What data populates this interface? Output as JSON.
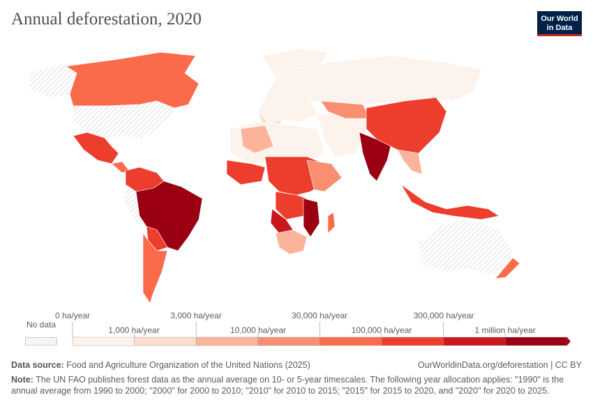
{
  "title": "Annual deforestation, 2020",
  "logo": {
    "line1": "Our World",
    "line2": "in Data"
  },
  "legend": {
    "no_data": "No data",
    "bins_upper": [
      "0 ha/year",
      "3,000 ha/year",
      "30,000 ha/year",
      "300,000 ha/year"
    ],
    "bins_lower": [
      "1,000 ha/year",
      "10,000 ha/year",
      "100,000 ha/year",
      "1 million ha/year"
    ],
    "colors": [
      "#fdf3ed",
      "#fcdccd",
      "#fbb49b",
      "#f98f70",
      "#f96b4b",
      "#ec3d2d",
      "#c9171d",
      "#9b0012"
    ],
    "no_data_color": "#e6e6e6"
  },
  "footer": {
    "source_label": "Data source:",
    "source_text": "Food and Agriculture Organization of the United Nations (2025)",
    "url": "OurWorldinData.org/deforestation | CC BY",
    "note_label": "Note:",
    "note_text": "The UN FAO publishes forest data as the annual average on 10- or 5-year timescales. The following year allocation applies: \"1990\" is the annual average from 1990 to 2000; \"2000\" for 2000 to 2010; \"2010\" for 2010 to 2015; \"2015\" for 2015 to 2020, and \"2020\" for 2020 to 2025."
  }
}
